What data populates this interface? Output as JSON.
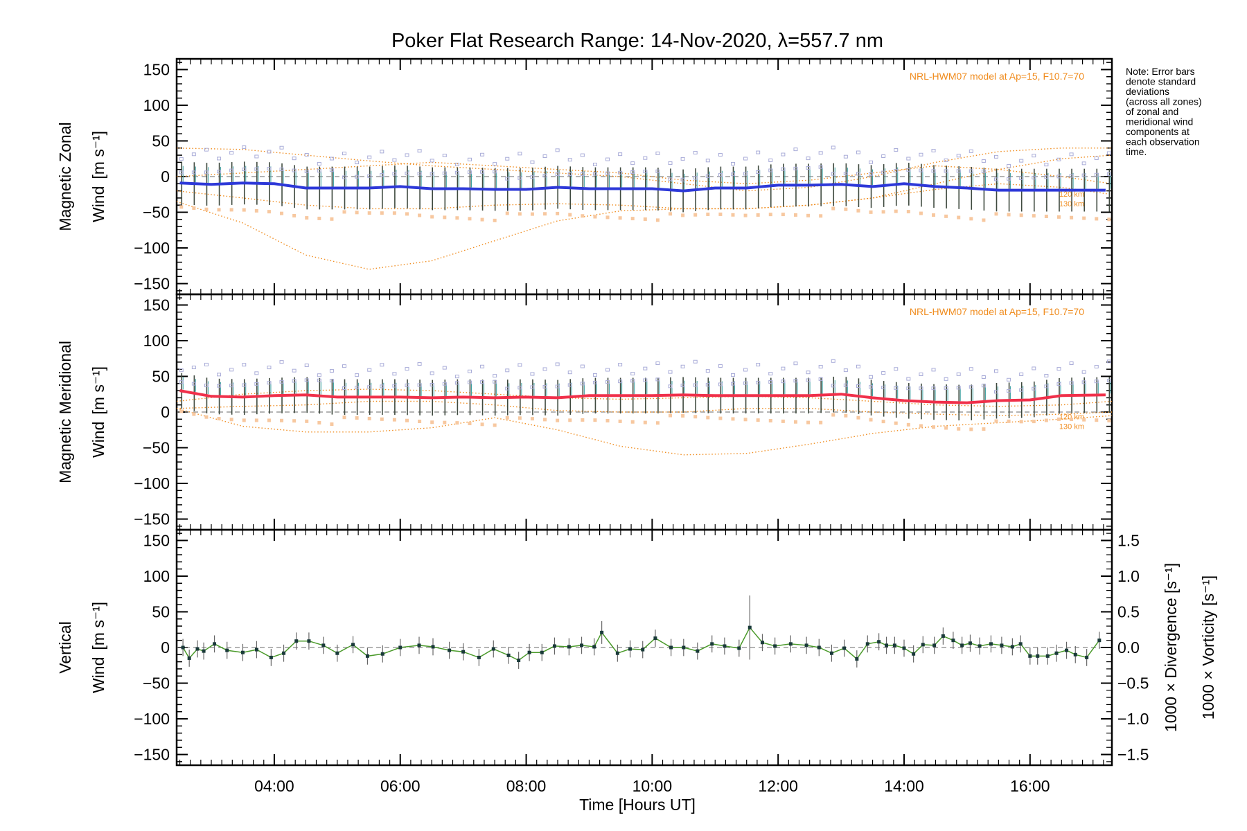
{
  "chart_data": {
    "title": "Poker Flat Research Range: 14-Nov-2020, λ=557.7 nm",
    "xlabel": "Time [Hours UT]",
    "x_range_hours": [
      2.45,
      17.3
    ],
    "x_ticks": [
      "04:00",
      "06:00",
      "08:00",
      "10:00",
      "12:00",
      "14:00",
      "16:00"
    ],
    "x_tick_hours": [
      4,
      6,
      8,
      10,
      12,
      14,
      16
    ],
    "note": [
      "Note: Error bars",
      "denote standard",
      "deviations",
      "(across all zones)",
      "of zonal and",
      "meridional wind",
      "components at",
      "each observation",
      "time."
    ],
    "colors": {
      "zonal": "#2d38d8",
      "meridional": "#f0304a",
      "vertical": "#4a9a2a",
      "model": "#f08c1e",
      "divergence": "#6fb2d8",
      "vorticity": "#f0609a",
      "scatter": "#a9acd8",
      "scatter_low": "#f7c8a0",
      "zero_line": "#888888"
    },
    "panels": [
      {
        "type": "line",
        "ylabel_lines": [
          "Magnetic Zonal",
          "Wind"
        ],
        "unit": "[m s⁻¹]",
        "ylim": [
          -165,
          165
        ],
        "yticks": [
          150,
          100,
          50,
          0,
          -50,
          -100,
          -150
        ],
        "model_label": "NRL-HWM07 model at Ap=15, F10.7=70",
        "model_alt_labels": [
          "120 km",
          "130 km"
        ],
        "series": [
          {
            "x": [
              2.5,
              3.0,
              3.5,
              4.0,
              4.5,
              5.0,
              5.5,
              6.0,
              6.5,
              7.0,
              7.5,
              8.0,
              8.5,
              9.0,
              9.5,
              10.0,
              10.5,
              11.0,
              11.5,
              12.0,
              12.5,
              13.0,
              13.5,
              14.0,
              14.5,
              15.0,
              15.5,
              16.0,
              16.5,
              17.2
            ],
            "y": [
              -9,
              -11,
              -9,
              -10,
              -16,
              -16,
              -16,
              -14,
              -17,
              -17,
              -18,
              -18,
              -15,
              -17,
              -17,
              -17,
              -20,
              -16,
              -16,
              -12,
              -12,
              -11,
              -14,
              -10,
              -14,
              -16,
              -19,
              -19,
              -19,
              -19
            ],
            "error": 30
          }
        ],
        "model_curves": [
          {
            "x": [
              2.45,
              3.5,
              4.5,
              5.5,
              6.5,
              7.5,
              8.5,
              9.5,
              10.5,
              11.5,
              12.5,
              13.5,
              14.5,
              15.5,
              16.5,
              17.3
            ],
            "y": [
              -35,
              -65,
              -110,
              -130,
              -118,
              -90,
              -62,
              -48,
              -45,
              -45,
              -40,
              -30,
              -10,
              10,
              25,
              30
            ]
          },
          {
            "x": [
              2.45,
              3.5,
              4.5,
              5.5,
              6.5,
              7.5,
              8.5,
              9.5,
              10.5,
              11.5,
              12.5,
              13.5,
              14.5,
              15.5,
              16.5,
              17.3
            ],
            "y": [
              40,
              38,
              30,
              22,
              15,
              10,
              5,
              0,
              -10,
              -20,
              -15,
              0,
              20,
              35,
              40,
              40
            ]
          },
          {
            "x": [
              2.45,
              3.5,
              4.5,
              5.5,
              6.5,
              7.5,
              8.5,
              9.5,
              10.5,
              11.5,
              12.5,
              13.5,
              14.5,
              15.5,
              16.5,
              17.3
            ],
            "y": [
              -20,
              -30,
              -40,
              -45,
              -45,
              -40,
              -38,
              -40,
              -45,
              -45,
              -40,
              -30,
              -18,
              -10,
              -15,
              -25
            ]
          },
          {
            "x": [
              2.45,
              3.5,
              4.5,
              5.5,
              6.5,
              7.5,
              8.5,
              9.5,
              10.5,
              11.5,
              12.5,
              13.5,
              14.5,
              15.5,
              16.5,
              17.3
            ],
            "y": [
              0,
              5,
              10,
              15,
              20,
              15,
              10,
              5,
              -5,
              -10,
              -5,
              5,
              15,
              10,
              0,
              -10
            ]
          }
        ]
      },
      {
        "type": "line",
        "ylabel_lines": [
          "Magnetic Meridional",
          "Wind"
        ],
        "unit": "[m s⁻¹]",
        "ylim": [
          -165,
          165
        ],
        "yticks": [
          150,
          100,
          50,
          0,
          -50,
          -100,
          -150
        ],
        "model_label": "NRL-HWM07 model at Ap=15, F10.7=70",
        "model_alt_labels": [
          "120 km",
          "130 km"
        ],
        "series": [
          {
            "x": [
              2.5,
              3.0,
              3.5,
              4.0,
              4.5,
              5.0,
              5.5,
              6.0,
              6.5,
              7.0,
              7.5,
              8.0,
              8.5,
              9.0,
              9.5,
              10.0,
              10.5,
              11.0,
              11.5,
              12.0,
              12.5,
              13.0,
              13.5,
              14.0,
              14.5,
              15.0,
              15.5,
              16.0,
              16.5,
              17.2
            ],
            "y": [
              30,
              22,
              21,
              23,
              24,
              21,
              21,
              21,
              20,
              21,
              20,
              21,
              20,
              23,
              23,
              23,
              24,
              23,
              23,
              23,
              23,
              25,
              20,
              16,
              14,
              13,
              16,
              17,
              23,
              24
            ],
            "error": 25
          }
        ],
        "model_curves": [
          {
            "x": [
              2.45,
              3.5,
              4.5,
              5.5,
              6.5,
              7.5,
              8.5,
              9.5,
              10.5,
              11.5,
              12.5,
              13.5,
              14.5,
              15.5,
              16.5,
              17.3
            ],
            "y": [
              5,
              -20,
              -28,
              -28,
              -22,
              -8,
              -25,
              -48,
              -60,
              -58,
              -45,
              -30,
              -20,
              -15,
              -10,
              -5
            ]
          },
          {
            "x": [
              2.45,
              3.5,
              4.5,
              5.5,
              6.5,
              7.5,
              8.5,
              9.5,
              10.5,
              11.5,
              12.5,
              13.5,
              14.5,
              15.5,
              16.5,
              17.3
            ],
            "y": [
              5,
              8,
              10,
              15,
              15,
              10,
              2,
              0,
              0,
              5,
              5,
              0,
              -3,
              -5,
              -3,
              0
            ]
          },
          {
            "x": [
              2.45,
              3.5,
              4.5,
              5.5,
              6.5,
              7.5,
              8.5,
              9.5,
              10.5,
              11.5,
              12.5,
              13.5,
              14.5,
              15.5,
              16.5,
              17.3
            ],
            "y": [
              15,
              25,
              30,
              32,
              30,
              25,
              20,
              18,
              20,
              22,
              20,
              15,
              10,
              8,
              10,
              15
            ]
          }
        ]
      },
      {
        "type": "line",
        "ylabel_lines": [
          "Vertical",
          "Wind"
        ],
        "unit": "[m s⁻¹]",
        "ylim": [
          -165,
          165
        ],
        "yticks": [
          150,
          100,
          50,
          0,
          -50,
          -100,
          -150
        ],
        "right_ylim": [
          -1.65,
          1.65
        ],
        "right_yticks": [
          "1.5",
          "1.0",
          "0.5",
          "0.0",
          "−0.5",
          "−1.0",
          "−1.5"
        ],
        "right_ytick_values": [
          1.5,
          1.0,
          0.5,
          0.0,
          -0.5,
          -1.0,
          -1.5
        ],
        "right_ylabel_div": "1000 × Divergence [s⁻¹]",
        "right_ylabel_vort": "1000 × Vorticity [s⁻¹]",
        "series": [
          {
            "x": [
              2.55,
              2.65,
              2.78,
              2.88,
              3.05,
              3.25,
              3.5,
              3.72,
              3.95,
              4.15,
              4.35,
              4.55,
              4.78,
              5.0,
              5.25,
              5.48,
              5.72,
              6.0,
              6.3,
              6.52,
              6.78,
              7.0,
              7.25,
              7.48,
              7.72,
              7.88,
              8.05,
              8.25,
              8.45,
              8.68,
              8.88,
              9.08,
              9.2,
              9.45,
              9.65,
              9.85,
              10.05,
              10.3,
              10.5,
              10.72,
              10.95,
              11.15,
              11.38,
              11.55,
              11.75,
              11.95,
              12.2,
              12.45,
              12.65,
              12.85,
              13.05,
              13.25,
              13.42,
              13.6,
              13.72,
              13.85,
              14.0,
              14.15,
              14.3,
              14.48,
              14.62,
              14.78,
              14.92,
              15.05,
              15.2,
              15.38,
              15.55,
              15.72,
              15.85,
              16.0,
              16.12,
              16.28,
              16.42,
              16.58,
              16.72,
              16.9,
              17.1
            ],
            "y": [
              0,
              -15,
              -2,
              -5,
              5,
              -4,
              -7,
              -3,
              -14,
              -8,
              9,
              9,
              3,
              -8,
              4,
              -12,
              -9,
              0,
              3,
              1,
              -4,
              -6,
              -14,
              -2,
              -11,
              -18,
              -7,
              -7,
              2,
              1,
              3,
              1,
              21,
              -8,
              -2,
              -3,
              13,
              0,
              0,
              -5,
              5,
              2,
              -1,
              28,
              7,
              2,
              5,
              3,
              0,
              -8,
              -1,
              -16,
              5,
              8,
              3,
              3,
              -1,
              -9,
              4,
              3,
              16,
              10,
              3,
              6,
              2,
              5,
              3,
              1,
              5,
              -12,
              -12,
              -12,
              -8,
              -4,
              -10,
              -14,
              10
            ],
            "error": 12
          }
        ]
      }
    ]
  }
}
